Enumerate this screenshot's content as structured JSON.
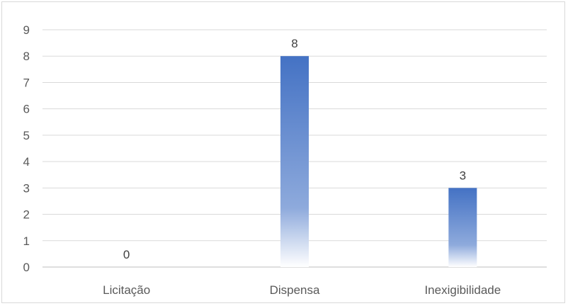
{
  "chart_data": {
    "type": "bar",
    "title": "",
    "xlabel": "",
    "ylabel": "",
    "categories": [
      "Licitação",
      "Dispensa",
      "Inexigibilidade"
    ],
    "values": [
      0,
      8,
      3
    ],
    "data_labels": [
      "0",
      "8",
      "3"
    ],
    "ylim": [
      0,
      9
    ],
    "yticks": [
      "0",
      "1",
      "2",
      "3",
      "4",
      "5",
      "6",
      "7",
      "8",
      "9"
    ],
    "grid": true,
    "legend": "none",
    "bar_color": "#4472c4"
  }
}
